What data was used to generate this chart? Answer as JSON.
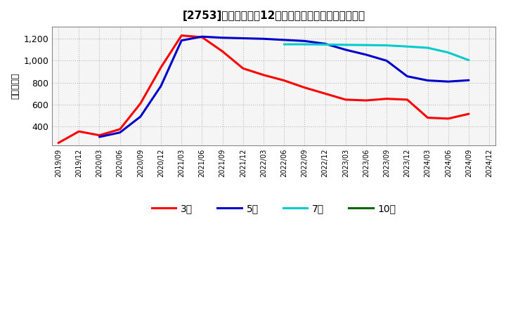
{
  "title": "[2753]　当期級利益12か月移動合計の標準偶差の推移",
  "ylabel": "（百万円）",
  "background_color": "#ffffff",
  "plot_background_color": "#f5f5f5",
  "grid_color": "#aaaaaa",
  "ylim": [
    230,
    1310
  ],
  "yticks": [
    400,
    600,
    800,
    1000,
    1200
  ],
  "series": {
    "3年": {
      "color": "#ff0000",
      "data": [
        [
          "2019/09",
          250
        ],
        [
          "2019/12",
          355
        ],
        [
          "2020/03",
          320
        ],
        [
          "2020/06",
          375
        ],
        [
          "2020/09",
          610
        ],
        [
          "2020/12",
          940
        ],
        [
          "2021/03",
          1230
        ],
        [
          "2021/06",
          1215
        ],
        [
          "2021/09",
          1085
        ],
        [
          "2021/12",
          930
        ],
        [
          "2022/03",
          870
        ],
        [
          "2022/06",
          820
        ],
        [
          "2022/09",
          755
        ],
        [
          "2022/12",
          700
        ],
        [
          "2023/03",
          645
        ],
        [
          "2023/06",
          638
        ],
        [
          "2023/09",
          653
        ],
        [
          "2023/12",
          645
        ],
        [
          "2024/03",
          480
        ],
        [
          "2024/06",
          472
        ],
        [
          "2024/09",
          515
        ]
      ]
    },
    "5年": {
      "color": "#0000cc",
      "data": [
        [
          "2020/03",
          305
        ],
        [
          "2020/06",
          345
        ],
        [
          "2020/09",
          490
        ],
        [
          "2020/12",
          770
        ],
        [
          "2021/03",
          1185
        ],
        [
          "2021/06",
          1220
        ],
        [
          "2021/09",
          1210
        ],
        [
          "2021/12",
          1205
        ],
        [
          "2022/03",
          1200
        ],
        [
          "2022/06",
          1190
        ],
        [
          "2022/09",
          1180
        ],
        [
          "2022/12",
          1155
        ],
        [
          "2023/03",
          1100
        ],
        [
          "2023/06",
          1055
        ],
        [
          "2023/09",
          1000
        ],
        [
          "2023/12",
          858
        ],
        [
          "2024/03",
          820
        ],
        [
          "2024/06",
          810
        ],
        [
          "2024/09",
          822
        ]
      ]
    },
    "7年": {
      "color": "#00cccc",
      "data": [
        [
          "2022/06",
          1150
        ],
        [
          "2022/09",
          1150
        ],
        [
          "2022/12",
          1148
        ],
        [
          "2023/03",
          1145
        ],
        [
          "2023/06",
          1143
        ],
        [
          "2023/09",
          1140
        ],
        [
          "2023/12",
          1130
        ],
        [
          "2024/03",
          1118
        ],
        [
          "2024/06",
          1075
        ],
        [
          "2024/09",
          1005
        ]
      ]
    },
    "10年": {
      "color": "#006600",
      "data": []
    }
  },
  "xtick_labels": [
    "2019/09",
    "2019/12",
    "2020/03",
    "2020/06",
    "2020/09",
    "2020/12",
    "2021/03",
    "2021/06",
    "2021/09",
    "2021/12",
    "2022/03",
    "2022/06",
    "2022/09",
    "2022/12",
    "2023/03",
    "2023/06",
    "2023/09",
    "2023/12",
    "2024/03",
    "2024/06",
    "2024/09",
    "2024/12"
  ],
  "legend_labels": [
    "3年",
    "5年",
    "7年",
    "10年"
  ],
  "legend_colors": [
    "#ff0000",
    "#0000cc",
    "#00cccc",
    "#006600"
  ],
  "line_width": 2.2
}
